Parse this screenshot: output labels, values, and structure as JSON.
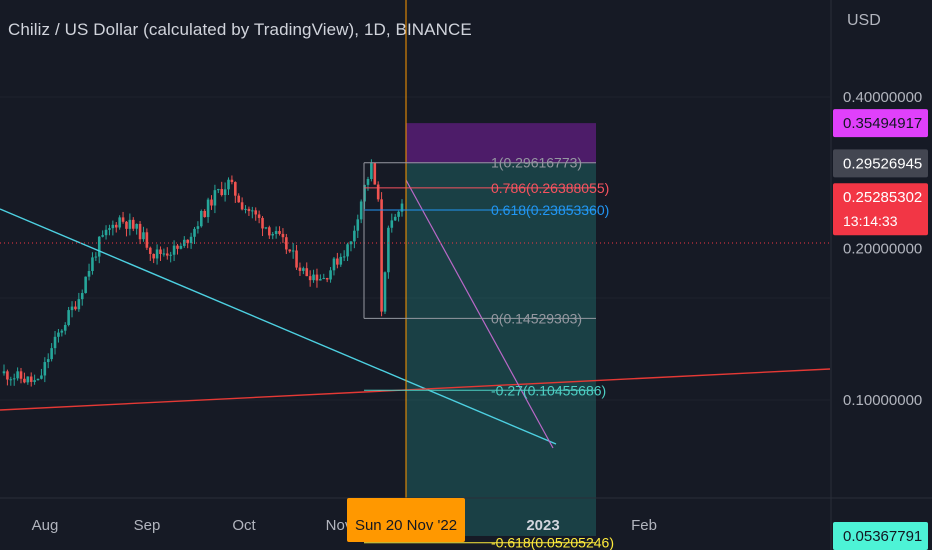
{
  "header": {
    "title": "Chiliz / US Dollar (calculated by TradingView), 1D, BINANCE",
    "currency": "USD"
  },
  "chart_data": {
    "type": "candlestick",
    "y_axis": {
      "ticks": [
        "0.40000000",
        "0.20000000",
        "0.10000000"
      ],
      "tick_values": [
        0.4,
        0.2,
        0.1
      ],
      "scale": "log"
    },
    "x_axis": {
      "ticks": [
        "Aug",
        "Sep",
        "Oct",
        "Nov",
        "2023",
        "Feb"
      ],
      "bold_ticks": [
        "2023"
      ],
      "crosshair_label": "Sun 20 Nov '22"
    },
    "price_labels": [
      {
        "text": "0.35494917",
        "value": 0.35494917,
        "bg": "#e040fb",
        "fg": "#131722"
      },
      {
        "text": "0.29526945",
        "value": 0.29526945,
        "bg": "#434651",
        "fg": "#ffffff"
      },
      {
        "text": "0.25285302",
        "value": 0.25285302,
        "bg": "#f23645",
        "fg": "#ffffff",
        "sub": "13:14:33"
      },
      {
        "text": "0.05367791",
        "value": 0.05367791,
        "bg": "#4df3d6",
        "fg": "#131722"
      }
    ],
    "fib_levels": [
      {
        "label": "1(0.29616773)",
        "value": 0.29616773,
        "color": "#9598a1"
      },
      {
        "label": "0.786(0.26388055)",
        "value": 0.26388055,
        "color": "#f7525f"
      },
      {
        "label": "0.618(0.23853360)",
        "value": 0.2385336,
        "color": "#2196f3"
      },
      {
        "label": "0(0.14529303)",
        "value": 0.14529303,
        "color": "#9598a1"
      },
      {
        "label": "-0.27(0.10455686)",
        "value": 0.10455686,
        "color": "#4dd0c4"
      },
      {
        "label": "-0.618(0.05205246)",
        "value": 0.05205246,
        "color": "#ffeb3b"
      }
    ],
    "position": {
      "target": 0.35494917,
      "entry": 0.29526945,
      "stop": 0.05367791
    },
    "colors": {
      "up": "#26a69a",
      "down": "#ef5350",
      "background": "#161a25",
      "crosshair": "#ff9800"
    }
  }
}
